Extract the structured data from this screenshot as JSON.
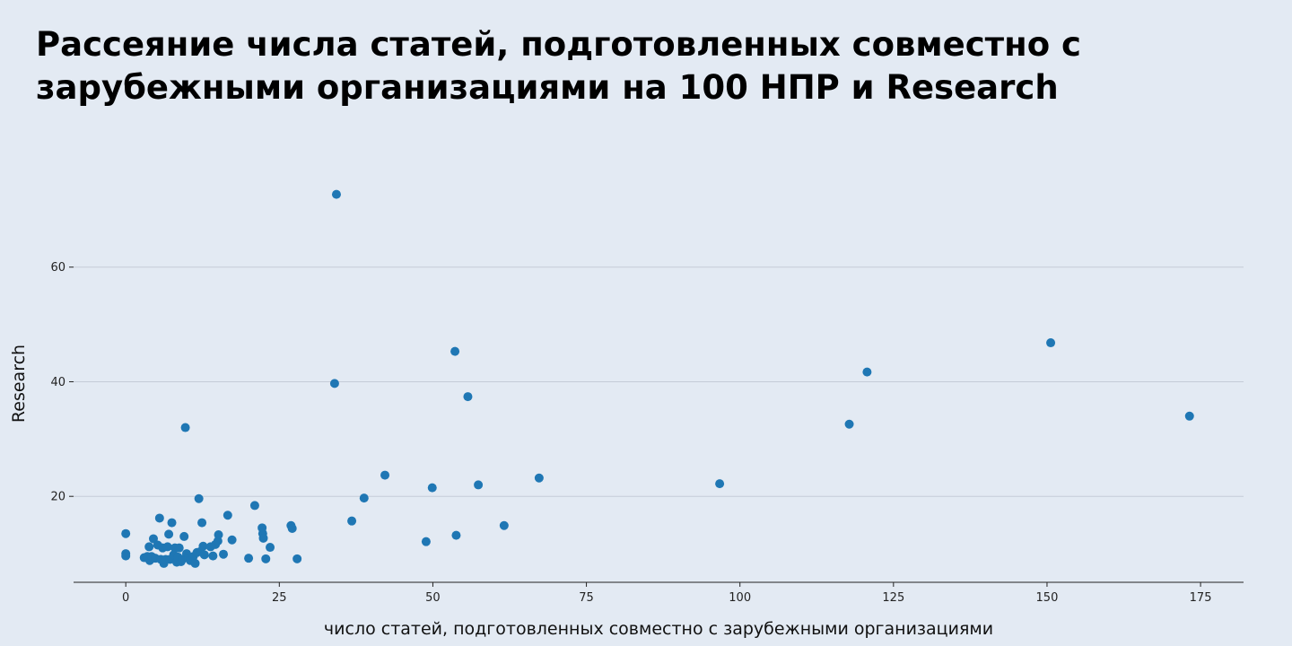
{
  "chart_data": {
    "type": "scatter",
    "title": "Рассеяние числа статей, подготовленных совместно с зарубежными организациями на 100 НПР и Research",
    "xlabel": "число статей, подготовленных совместно с зарубежными организациями",
    "ylabel": "Research",
    "xlim": [
      -8.5,
      182
    ],
    "ylim": [
      5,
      80
    ],
    "xticks": [
      0,
      25,
      50,
      75,
      100,
      125,
      150,
      175
    ],
    "yticks": [
      20,
      40,
      60
    ],
    "grid": "horizontal",
    "marker_color": "#1f77b4",
    "points": [
      [
        0.0,
        13.5
      ],
      [
        0.0,
        10.0
      ],
      [
        0.0,
        9.6
      ],
      [
        3.0,
        9.3
      ],
      [
        3.5,
        9.5
      ],
      [
        3.8,
        11.2
      ],
      [
        3.9,
        8.8
      ],
      [
        4.2,
        9.5
      ],
      [
        4.5,
        12.6
      ],
      [
        4.8,
        9.2
      ],
      [
        5.2,
        11.5
      ],
      [
        5.5,
        16.2
      ],
      [
        5.7,
        9.0
      ],
      [
        6.0,
        11.0
      ],
      [
        6.2,
        8.3
      ],
      [
        6.5,
        9.0
      ],
      [
        6.8,
        11.2
      ],
      [
        7.0,
        13.4
      ],
      [
        7.2,
        9.0
      ],
      [
        7.5,
        15.4
      ],
      [
        7.8,
        9.8
      ],
      [
        8.0,
        11.0
      ],
      [
        8.3,
        8.5
      ],
      [
        8.5,
        9.4
      ],
      [
        8.7,
        11.0
      ],
      [
        9.0,
        8.6
      ],
      [
        9.2,
        9.0
      ],
      [
        9.5,
        13.0
      ],
      [
        9.7,
        32.0
      ],
      [
        9.9,
        10.0
      ],
      [
        10.2,
        9.2
      ],
      [
        10.5,
        8.8
      ],
      [
        11.0,
        9.5
      ],
      [
        11.3,
        8.3
      ],
      [
        11.6,
        10.2
      ],
      [
        11.9,
        19.6
      ],
      [
        12.2,
        10.4
      ],
      [
        12.4,
        15.4
      ],
      [
        12.6,
        11.3
      ],
      [
        12.8,
        9.8
      ],
      [
        13.8,
        11.2
      ],
      [
        14.2,
        9.6
      ],
      [
        14.6,
        11.6
      ],
      [
        15.0,
        12.2
      ],
      [
        15.1,
        13.3
      ],
      [
        15.9,
        9.9
      ],
      [
        16.6,
        16.7
      ],
      [
        17.3,
        12.4
      ],
      [
        20.0,
        9.2
      ],
      [
        21.0,
        18.4
      ],
      [
        22.2,
        14.5
      ],
      [
        22.3,
        13.5
      ],
      [
        22.4,
        12.7
      ],
      [
        22.8,
        9.1
      ],
      [
        23.5,
        11.1
      ],
      [
        26.9,
        14.9
      ],
      [
        27.1,
        14.4
      ],
      [
        27.9,
        9.1
      ],
      [
        34.0,
        39.7
      ],
      [
        34.3,
        72.7
      ],
      [
        36.8,
        15.7
      ],
      [
        38.8,
        19.7
      ],
      [
        42.2,
        23.7
      ],
      [
        48.9,
        12.1
      ],
      [
        49.9,
        21.5
      ],
      [
        53.6,
        45.3
      ],
      [
        53.8,
        13.2
      ],
      [
        55.7,
        37.4
      ],
      [
        57.4,
        22.0
      ],
      [
        61.6,
        14.9
      ],
      [
        67.3,
        23.2
      ],
      [
        96.7,
        22.2
      ],
      [
        117.8,
        32.6
      ],
      [
        120.7,
        41.7
      ],
      [
        150.6,
        46.8
      ],
      [
        173.2,
        34.0
      ]
    ]
  }
}
